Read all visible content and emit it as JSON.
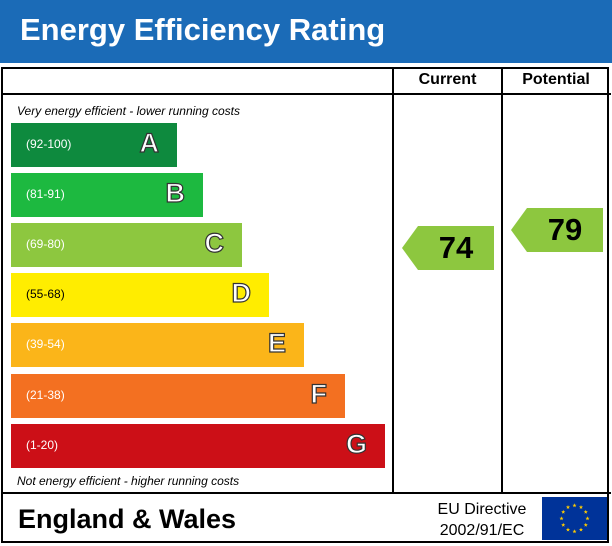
{
  "header": {
    "title": "Energy Efficiency Rating",
    "bg_color": "#1b6bb7"
  },
  "columns": {
    "current": "Current",
    "potential": "Potential"
  },
  "notes": {
    "top": "Very energy efficient - lower running costs",
    "bottom": "Not energy efficient - higher running costs"
  },
  "footer": {
    "region": "England & Wales",
    "directive_line1": "EU Directive",
    "directive_line2": "2002/91/EC",
    "flag_icon": "eu-flag-icon"
  },
  "chart_data": {
    "type": "bar",
    "title": "Energy Efficiency Rating",
    "categories": [
      "A",
      "B",
      "C",
      "D",
      "E",
      "F",
      "G"
    ],
    "bands": [
      {
        "letter": "A",
        "range": "(92-100)",
        "color": "#0e8a3e"
      },
      {
        "letter": "B",
        "range": "(81-91)",
        "color": "#1db940"
      },
      {
        "letter": "C",
        "range": "(69-80)",
        "color": "#8dc73f"
      },
      {
        "letter": "D",
        "range": "(55-68)",
        "color": "#ffed00"
      },
      {
        "letter": "E",
        "range": "(39-54)",
        "color": "#fbb519"
      },
      {
        "letter": "F",
        "range": "(21-38)",
        "color": "#f37021"
      },
      {
        "letter": "G",
        "range": "(1-20)",
        "color": "#cc0f17"
      }
    ],
    "current": {
      "value": 74,
      "band": "C",
      "color": "#8dc73f"
    },
    "potential": {
      "value": 79,
      "band": "C",
      "color": "#8dc73f"
    }
  }
}
